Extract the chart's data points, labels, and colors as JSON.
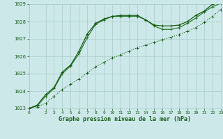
{
  "title": "Graphe pression niveau de la mer (hPa)",
  "background_color": "#cce8e8",
  "grid_color": "#aacccc",
  "line_color_dark": "#1a5c1a",
  "line_color_med": "#2a7a2a",
  "xlim": [
    0,
    23
  ],
  "ylim": [
    1023,
    1029
  ],
  "xticks": [
    0,
    2,
    3,
    4,
    5,
    6,
    7,
    8,
    9,
    10,
    11,
    12,
    13,
    14,
    15,
    16,
    17,
    18,
    19,
    20,
    21,
    22,
    23
  ],
  "yticks": [
    1023,
    1024,
    1025,
    1026,
    1027,
    1028,
    1029
  ],
  "hours": [
    0,
    1,
    2,
    3,
    4,
    5,
    6,
    7,
    8,
    9,
    10,
    11,
    12,
    13,
    14,
    15,
    16,
    17,
    18,
    19,
    20,
    21,
    22,
    23
  ],
  "line1": [
    1023.0,
    1023.2,
    1023.8,
    1024.2,
    1025.1,
    1025.5,
    1026.3,
    1027.3,
    1027.9,
    1028.15,
    1028.3,
    1028.35,
    1028.35,
    1028.35,
    1028.1,
    1027.8,
    1027.75,
    1027.75,
    1027.8,
    1028.0,
    1028.35,
    1028.6,
    1029.0,
    1029.1
  ],
  "line2": [
    1023.0,
    1023.15,
    1023.7,
    1024.15,
    1025.0,
    1025.45,
    1026.15,
    1027.1,
    1027.85,
    1028.1,
    1028.3,
    1028.3,
    1028.3,
    1028.3,
    1028.1,
    1027.75,
    1027.55,
    1027.55,
    1027.65,
    1027.9,
    1028.2,
    1028.55,
    1028.85,
    1029.05
  ],
  "line3": [
    1023.0,
    1023.1,
    1023.3,
    1023.7,
    1024.1,
    1024.4,
    1024.7,
    1025.05,
    1025.4,
    1025.65,
    1025.9,
    1026.1,
    1026.3,
    1026.5,
    1026.65,
    1026.8,
    1026.95,
    1027.1,
    1027.25,
    1027.45,
    1027.65,
    1027.95,
    1028.3,
    1028.7
  ]
}
